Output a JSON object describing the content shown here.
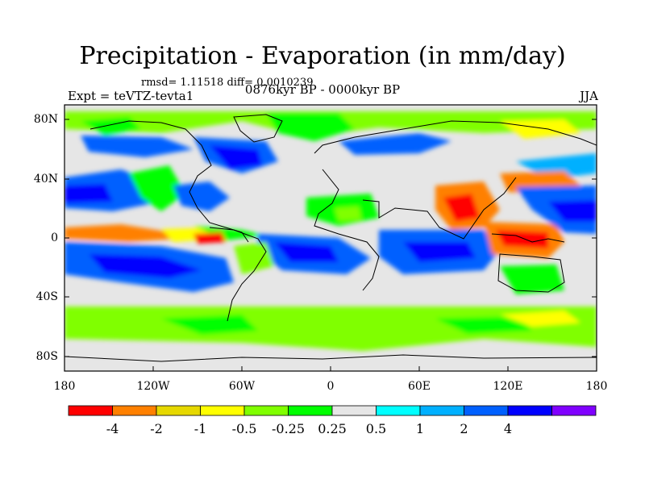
{
  "title": "Precipitation - Evaporation (in mm/day)",
  "stats": "rmsd= 1.11518 diff= 0.0010239",
  "experiment": "Expt = teVTZ-tevta1",
  "period": "0876kyr BP - 0000kyr BP",
  "season": "JJA",
  "lat_labels": [
    "80N",
    "40N",
    "0",
    "40S",
    "80S"
  ],
  "lon_labels": [
    "180",
    "120W",
    "60W",
    "0",
    "60E",
    "120E",
    "180"
  ],
  "colorbar": {
    "labels": [
      "-4",
      "-2",
      "-1",
      "-0.5",
      "-0.25",
      "0.25",
      "0.5",
      "1",
      "2",
      "4"
    ],
    "colors": [
      "#ff0000",
      "#ff8000",
      "#e6d800",
      "#ffff00",
      "#80ff00",
      "#00ff00",
      "#e6e6e6",
      "#00ffff",
      "#00b0ff",
      "#0060ff",
      "#0000ff",
      "#8000ff"
    ]
  }
}
